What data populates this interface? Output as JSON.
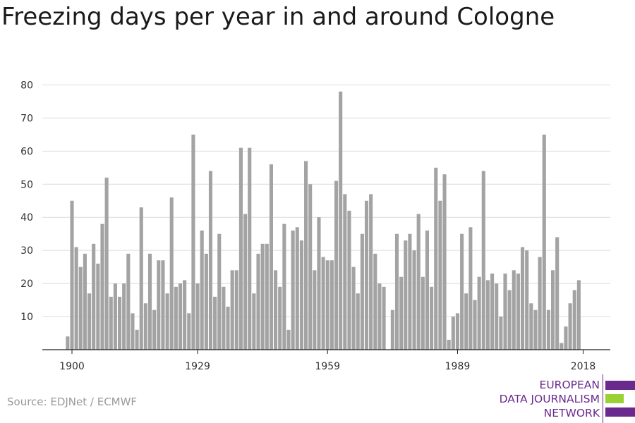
{
  "title": "Freezing days per year in and around Cologne",
  "source": "Source: EDJNet / ECMWF",
  "logo": {
    "lines": [
      "EUROPEAN",
      "DATA JOURNALISM",
      "NETWORK"
    ],
    "colors": {
      "purple": "#6a2a8d",
      "green": "#9ad134"
    }
  },
  "chart_data": {
    "type": "bar",
    "x_start": 1900,
    "x_end": 2018,
    "ylim": [
      0,
      80
    ],
    "yticks": [
      10,
      20,
      30,
      40,
      50,
      60,
      70,
      80
    ],
    "xticks": [
      1900,
      1929,
      1959,
      1989,
      2018
    ],
    "grid": true,
    "bar_color": "#a3a3a3",
    "series": [
      {
        "x": [
          1899,
          1900,
          1901,
          1902,
          1903,
          1904,
          1905,
          1906,
          1907,
          1908,
          1909,
          1910,
          1911,
          1912,
          1913,
          1914,
          1915,
          1916,
          1917,
          1918,
          1919,
          1920,
          1921,
          1922,
          1923,
          1924,
          1925,
          1926,
          1927,
          1928,
          1929,
          1930,
          1931,
          1932,
          1933,
          1934,
          1935,
          1936,
          1937,
          1938,
          1939,
          1940,
          1941,
          1942,
          1943,
          1944,
          1945,
          1946,
          1947,
          1948,
          1949,
          1950,
          1951,
          1952,
          1953,
          1954,
          1955,
          1956,
          1957,
          1958,
          1959,
          1960,
          1961,
          1962,
          1963,
          1964,
          1965,
          1966,
          1967,
          1968,
          1969,
          1970,
          1971,
          1972,
          1973,
          1974,
          1975,
          1976,
          1977,
          1978,
          1979,
          1980,
          1981,
          1982,
          1983,
          1984,
          1985,
          1986,
          1987,
          1988,
          1989,
          1990,
          1991,
          1992,
          1993,
          1994,
          1995,
          1996,
          1997,
          1998,
          1999,
          2000,
          2001,
          2002,
          2003,
          2004,
          2005,
          2006,
          2007,
          2008,
          2009,
          2010,
          2011,
          2012,
          2013,
          2014,
          2015,
          2016,
          2017,
          2018
        ],
        "values": [
          4,
          45,
          31,
          25,
          29,
          17,
          32,
          26,
          38,
          52,
          16,
          20,
          16,
          20,
          29,
          11,
          6,
          43,
          14,
          29,
          12,
          27,
          27,
          17,
          46,
          19,
          20,
          21,
          11,
          65,
          20,
          36,
          29,
          54,
          16,
          35,
          19,
          13,
          24,
          24,
          61,
          41,
          61,
          17,
          29,
          32,
          32,
          56,
          24,
          19,
          38,
          6,
          36,
          37,
          33,
          57,
          50,
          24,
          40,
          28,
          27,
          27,
          51,
          78,
          47,
          42,
          25,
          17,
          35,
          45,
          47,
          29,
          20,
          19,
          0,
          12,
          35,
          22,
          33,
          35,
          30,
          41,
          22,
          36,
          19,
          55,
          45,
          53,
          3,
          10,
          11,
          35,
          17,
          37,
          15,
          22,
          54,
          21,
          23,
          20,
          10,
          23,
          18,
          24,
          23,
          31,
          30,
          14,
          12,
          28,
          65,
          12,
          24,
          34,
          2,
          7,
          14,
          18,
          21,
          0
        ]
      }
    ]
  }
}
